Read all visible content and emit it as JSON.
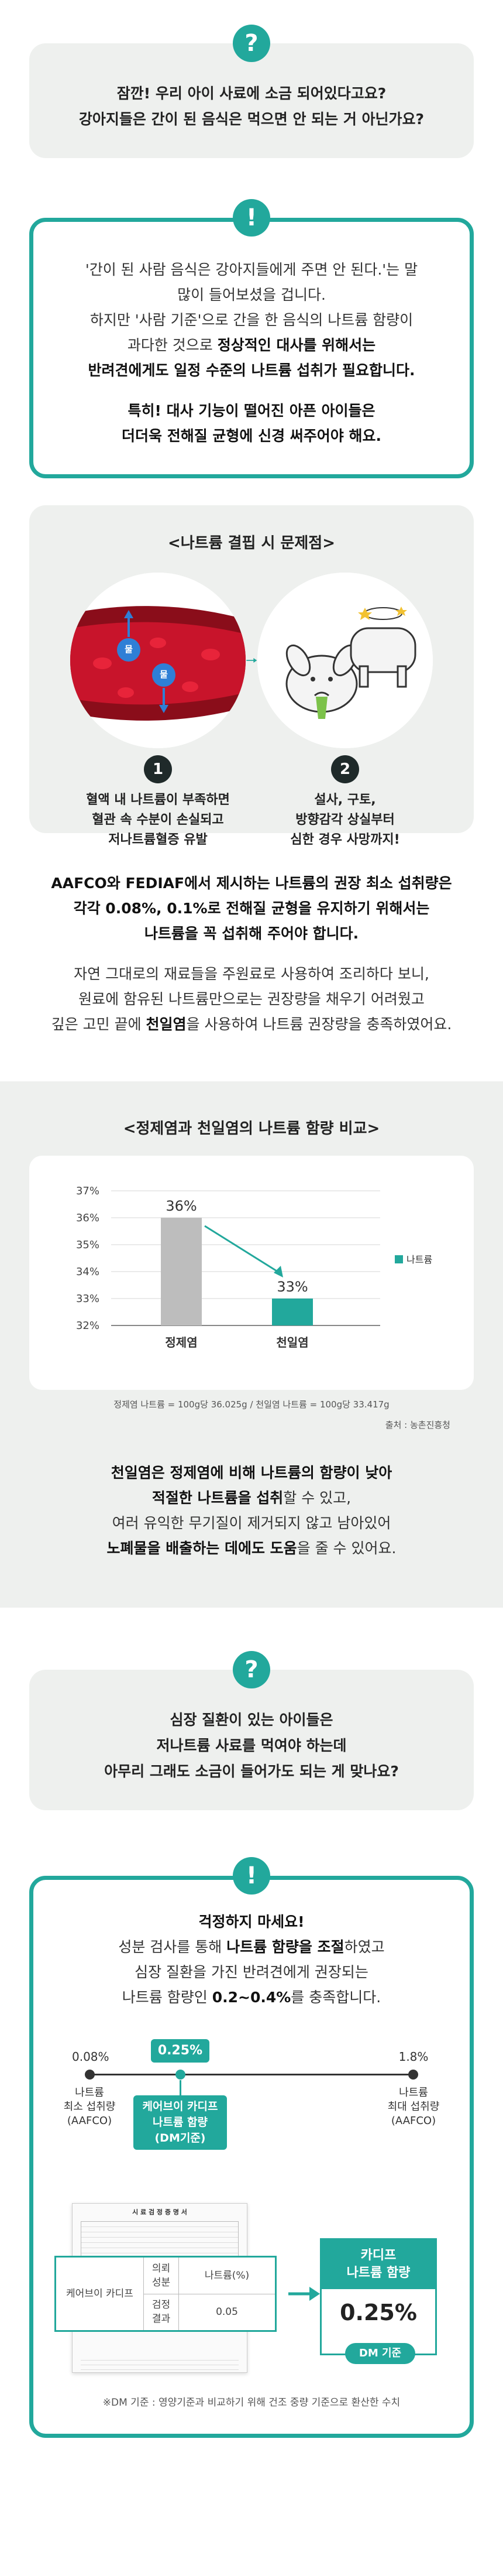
{
  "faq1": {
    "q_icon": "question-mark-icon",
    "q_icon_text": "?",
    "question_line1": "잠깐! 우리 아이 사료에 소금 되어있다고요?",
    "question_line2": "강아지들은 간이 된 음식은 먹으면 안 되는 거 아닌가요?",
    "a_icon_text": "!",
    "answer_line1": "'간이 된 사람 음식은 강아지들에게 주면 안 된다.'는 말",
    "answer_line2": "많이 들어보셨을 겁니다.",
    "answer_line3": "하지만 '사람 기준'으로 간을 한 음식의 나트륨 함량이",
    "answer_line4a": "과다한 것으로 ",
    "answer_line4b": "정상적인 대사를 위해서는",
    "answer_line5": "반려견에게도 일정 수준의 나트륨 섭취가 필요합니다.",
    "answer_line6": "특히! 대사 기능이 떨어진 아픈 아이들은",
    "answer_line7": "더더욱 전해질 균형에 신경 써주어야 해요."
  },
  "deficiency": {
    "title": "<나트륨 결핍 시 문제점>",
    "blood_label": "물",
    "item1_number": "1",
    "item1_line1": "혈액 내 나트륨이 부족하면",
    "item1_line2": "혈관 속 수분이 손실되고",
    "item1_line3": "저나트륨혈증 유발",
    "item2_number": "2",
    "item2_line1": "설사, 구토,",
    "item2_line2": "방향감각 상실부터",
    "item2_line3": "심한 경우 사망까지!"
  },
  "info": {
    "line1": "AAFCO와 FEDIAF에서 제시하는 나트륨의 권장 최소 섭취량은",
    "line2": "각각 0.08%, 0.1%로 전해질 균형을 유지하기 위해서는",
    "line3": "나트륨을 꼭 섭취해 주어야 합니다.",
    "line4": "자연 그대로의 재료들을 주원료로 사용하여 조리하다 보니,",
    "line5": "원료에 함유된 나트륨만으로는 권장량을 채우기 어려웠고",
    "line6a": "깊은 고민 끝에 ",
    "line6b": "천일염",
    "line6c": "을 사용하여 나트륨 권장량을 충족하였어요."
  },
  "chart_section": {
    "title": "<정제염과 천일염의 나트륨 함량 비교>",
    "footnote": "정제염 나트륨 = 100g당 36.025g / 천일염 나트륨 = 100g당 33.417g",
    "source": "출처 : 농촌진흥청",
    "desc_line1a": "천일염",
    "desc_line1b": "은 정제염에 비해 나트륨의 함량이 낮아",
    "desc_line2a": "적절한 나트륨을 섭취",
    "desc_line2b": "할 수 있고,",
    "desc_line3": "여러 유익한 무기질이 제거되지 않고 남아있어",
    "desc_line4a": "노폐물을 배출하는 데에도 도움",
    "desc_line4b": "을 줄 수 있어요."
  },
  "chart_data": {
    "type": "bar",
    "categories": [
      "정제염",
      "천일염"
    ],
    "values": [
      36,
      33
    ],
    "value_labels": [
      "36%",
      "33%"
    ],
    "series": [
      {
        "name": "나트륨",
        "values": [
          36,
          33
        ]
      }
    ],
    "yticks": [
      "37%",
      "36%",
      "35%",
      "34%",
      "33%",
      "32%"
    ],
    "ylim": [
      32,
      37
    ],
    "bar_colors": [
      "#bdbdbd",
      "#22a89c"
    ],
    "legend": "right",
    "grid": true,
    "title": "",
    "xlabel": "",
    "ylabel": ""
  },
  "faq2": {
    "q_icon_text": "?",
    "question_line1": "심장 질환이 있는 아이들은",
    "question_line2": "저나트륨 사료를 먹여야 하는데",
    "question_line3": "아무리 그래도 소금이 들어가도 되는 게 맞나요?",
    "a_icon_text": "!",
    "answer_title": "걱정하지 마세요!",
    "answer_line1a": "성분 검사를 통해 ",
    "answer_line1b": "나트륨 함량을 조절",
    "answer_line1c": "하였고",
    "answer_line2": "심장 질환을 가진 반려견에게 권장되는",
    "answer_line3a": "나트륨 함량인 ",
    "answer_line3b": "0.2~0.4%",
    "answer_line3c": "를 충족합니다.",
    "scale_min_value": "0.08%",
    "scale_max_value": "1.8%",
    "scale_mid_value": "0.25%",
    "scale_min_label1": "나트륨",
    "scale_min_label2": "최소 섭취량",
    "scale_min_label3": "(AAFCO)",
    "scale_max_label1": "나트륨",
    "scale_max_label2": "최대 섭취량",
    "scale_max_label3": "(AAFCO)",
    "mid_label1": "케어브이 카디프",
    "mid_label2": "나트륨 함량",
    "mid_label3": "(DM기준)",
    "report_title": "시 료 검 정 증 명 서",
    "report_product": "케어브이 카디프",
    "report_col1": "의뢰 성분",
    "report_col2": "나트륨(%)",
    "report_col3": "검정 결과",
    "report_value": "0.05",
    "result_title1": "카디프",
    "result_title2": "나트륨 함량",
    "result_value": "0.25%",
    "result_basis": "DM 기준",
    "footnote": "※DM 기준 : 영양기준과 비교하기 위해 건조 중량 기준으로 환산한 수치"
  }
}
